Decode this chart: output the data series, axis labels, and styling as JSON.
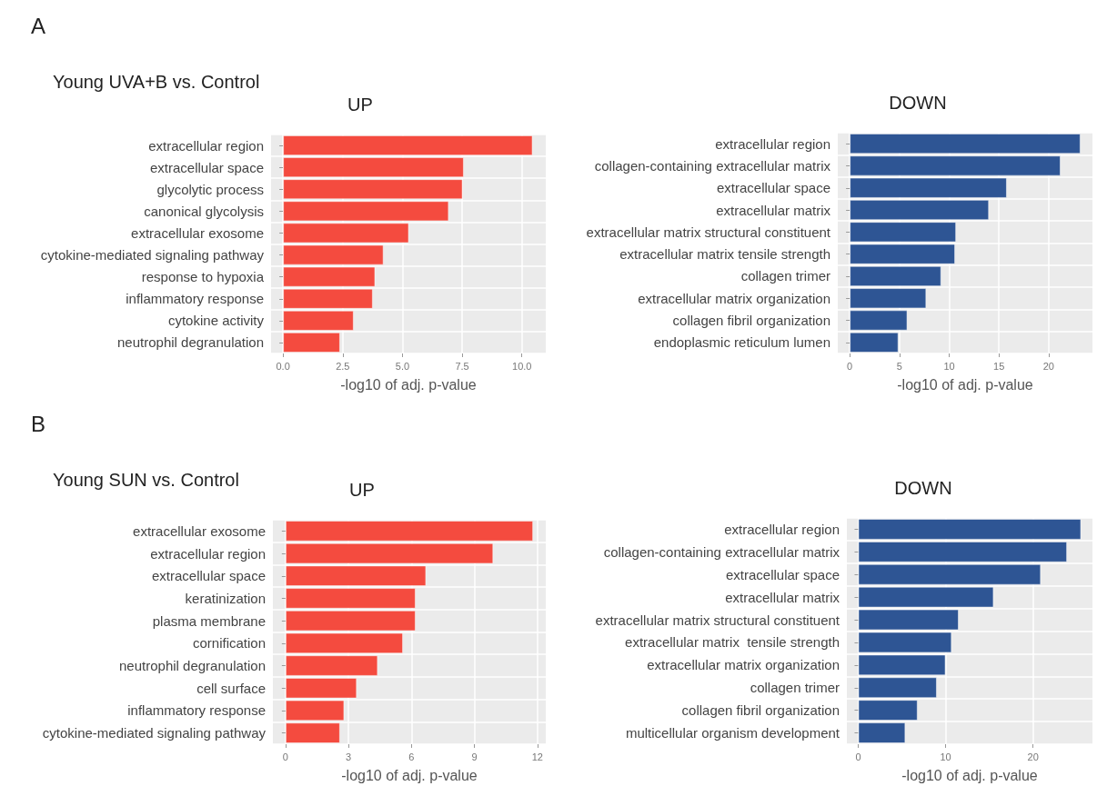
{
  "chart_data": [
    {
      "type": "bar",
      "orientation": "horizontal",
      "title": "UP",
      "xlabel": "-log10 of adj. p-value",
      "annotations": [
        "A",
        "Young UVA+B vs. Control"
      ],
      "categories": [
        "extracellular region",
        "extracellular space",
        "glycolytic process",
        "canonical glycolysis",
        "extracellular exosome",
        "cytokine-mediated signaling pathway",
        "response to hypoxia",
        "inflammatory response",
        "cytokine activity",
        "neutrophil degranulation"
      ],
      "values": [
        10.45,
        7.57,
        7.52,
        6.94,
        5.27,
        4.21,
        3.86,
        3.76,
        2.96,
        2.39
      ],
      "color": "#f44b3f",
      "xlim": [
        -0.5,
        11
      ],
      "xticks": [
        {
          "value": 0,
          "label": "0.0"
        },
        {
          "value": 2.5,
          "label": "2.5"
        },
        {
          "value": 5,
          "label": "5.0"
        },
        {
          "value": 7.5,
          "label": "7.5"
        },
        {
          "value": 10,
          "label": "10.0"
        }
      ],
      "grid": true
    },
    {
      "type": "bar",
      "orientation": "horizontal",
      "title": "DOWN",
      "xlabel": "-log10 of adj. p-value",
      "categories": [
        "extracellular region",
        "collagen-containing extracellular matrix",
        "extracellular space",
        "extracellular matrix",
        "extracellular matrix structural constituent",
        "extracellular matrix tensile strength",
        "collagen trimer",
        "extracellular matrix organization",
        "collagen fibril organization",
        "endoplasmic reticulum lumen"
      ],
      "values": [
        23.2,
        21.2,
        15.8,
        14.0,
        10.7,
        10.6,
        9.2,
        7.7,
        5.8,
        4.9
      ],
      "color": "#2e5594",
      "xlim": [
        -1.2,
        24.4
      ],
      "xticks": [
        0,
        5,
        10,
        15,
        20
      ],
      "grid": true
    },
    {
      "type": "bar",
      "orientation": "horizontal",
      "title": "UP",
      "xlabel": "-log10 of adj. p-value",
      "annotations": [
        "B",
        "Young SUN vs. Control"
      ],
      "categories": [
        "extracellular exosome",
        "extracellular region",
        "extracellular space",
        "keratinization",
        "plasma membrane",
        "cornification",
        "neutrophil degranulation",
        "cell surface",
        "inflammatory response",
        "cytokine-mediated signaling pathway"
      ],
      "values": [
        11.8,
        9.9,
        6.7,
        6.2,
        6.2,
        5.6,
        4.4,
        3.4,
        2.8,
        2.6
      ],
      "color": "#f44b3f",
      "xlim": [
        -0.6,
        12.4
      ],
      "xticks": [
        0,
        3,
        6,
        9,
        12
      ],
      "grid": true
    },
    {
      "type": "bar",
      "orientation": "horizontal",
      "title": "DOWN",
      "xlabel": "-log10 of adj. p-value",
      "categories": [
        "extracellular region",
        "collagen-containing extracellular matrix",
        "extracellular space",
        "extracellular matrix",
        "extracellular matrix structural constituent",
        "extracellular matrix  tensile strength",
        "extracellular matrix organization",
        "collagen trimer",
        "collagen fibril organization",
        "multicellular organism development"
      ],
      "values": [
        25.5,
        23.9,
        20.9,
        15.5,
        11.5,
        10.7,
        10.0,
        9.0,
        6.8,
        5.4
      ],
      "color": "#2e5594",
      "xlim": [
        -1.3,
        26.8
      ],
      "xticks": [
        0,
        10,
        20
      ],
      "grid": true
    }
  ]
}
